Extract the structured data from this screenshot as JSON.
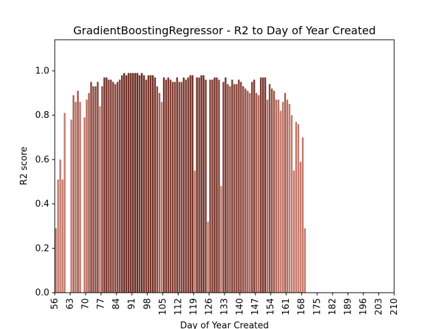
{
  "chart_data": {
    "type": "bar",
    "title": "GradientBoostingRegressor - R2 to Day of Year Created",
    "xlabel": "Day of Year Created",
    "ylabel": "R2 score",
    "xlim": [
      56,
      210
    ],
    "ylim": [
      0.0,
      1.14
    ],
    "grid": false,
    "x_ticks": [
      56,
      63,
      70,
      77,
      84,
      91,
      98,
      105,
      112,
      119,
      126,
      133,
      140,
      147,
      154,
      161,
      168,
      175,
      182,
      189,
      196,
      203,
      210
    ],
    "y_ticks": [
      0.0,
      0.2,
      0.4,
      0.6,
      0.8,
      1.0
    ],
    "x": [
      56,
      57,
      58,
      59,
      60,
      61,
      62,
      63,
      64,
      65,
      66,
      67,
      68,
      69,
      70,
      71,
      72,
      73,
      74,
      75,
      76,
      77,
      78,
      79,
      80,
      81,
      82,
      83,
      84,
      85,
      86,
      87,
      88,
      89,
      90,
      91,
      92,
      93,
      94,
      95,
      96,
      97,
      98,
      99,
      100,
      101,
      102,
      103,
      104,
      105,
      106,
      107,
      108,
      109,
      110,
      111,
      112,
      113,
      114,
      115,
      116,
      117,
      118,
      119,
      120,
      121,
      122,
      123,
      124,
      125,
      126,
      127,
      128,
      129,
      130,
      131,
      132,
      133,
      134,
      135,
      136,
      137,
      138,
      139,
      140,
      141,
      142,
      143,
      144,
      145,
      146,
      147,
      148,
      149,
      150,
      151,
      152,
      153,
      154,
      155,
      156,
      157,
      158,
      159,
      160,
      161,
      162,
      163,
      164,
      165,
      166,
      167,
      168,
      169,
      170
    ],
    "values": [
      0.29,
      0.51,
      0.6,
      0.51,
      0.81,
      0.0,
      0.0,
      0.78,
      0.89,
      0.86,
      0.91,
      0.86,
      0.0,
      0.79,
      0.87,
      0.9,
      0.95,
      0.93,
      0.93,
      0.95,
      0.84,
      0.93,
      0.97,
      0.97,
      0.96,
      0.96,
      0.95,
      0.94,
      0.95,
      0.96,
      0.98,
      0.99,
      0.98,
      0.99,
      0.99,
      0.99,
      0.99,
      0.99,
      0.98,
      0.99,
      0.98,
      0.96,
      0.98,
      0.98,
      0.98,
      0.97,
      0.93,
      0.9,
      0.86,
      0.97,
      0.96,
      0.97,
      0.96,
      0.95,
      0.95,
      0.97,
      0.95,
      0.95,
      0.97,
      0.96,
      0.97,
      0.98,
      0.98,
      0.55,
      0.97,
      0.97,
      0.98,
      0.98,
      0.96,
      0.32,
      0.96,
      0.96,
      0.97,
      0.97,
      0.96,
      0.48,
      0.95,
      0.97,
      0.94,
      0.93,
      0.96,
      0.94,
      0.94,
      0.96,
      0.95,
      0.93,
      0.92,
      0.91,
      0.9,
      0.95,
      0.96,
      0.9,
      0.89,
      0.97,
      0.97,
      0.97,
      0.87,
      0.94,
      0.92,
      0.91,
      0.87,
      0.87,
      0.82,
      0.86,
      0.9,
      0.87,
      0.85,
      0.8,
      0.55,
      0.77,
      0.76,
      0.59,
      0.7,
      0.29,
      0.0
    ],
    "color_light": "#c47a6c",
    "color_dark": "#6b2b22"
  }
}
